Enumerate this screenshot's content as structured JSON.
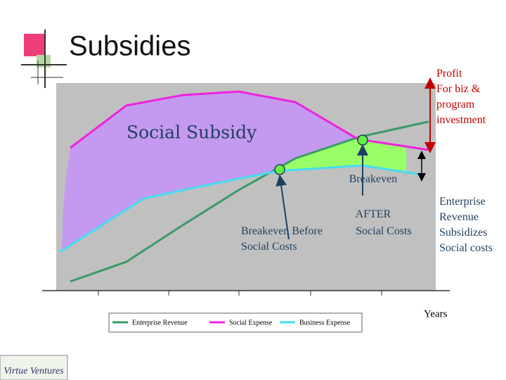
{
  "title": "Subsidies",
  "chart_data": {
    "type": "line",
    "annotations": {
      "subsidy": "Social Subsidy",
      "breakeven_after": [
        "Breakeven",
        "AFTER",
        "Social Costs"
      ],
      "breakeven_before": [
        "Breakeven Before",
        "Social Costs"
      ],
      "profit": [
        "Profit",
        "For biz &",
        "program",
        "investment"
      ],
      "enterprise": [
        "Enterprise",
        "Revenue",
        "Subsidizes",
        "Social costs"
      ]
    },
    "xlabel": "Years",
    "xlim": [
      0,
      100
    ],
    "ylim": [
      0,
      100
    ],
    "series": [
      {
        "name": "Enterprise Revenue",
        "color": "#3a9a68",
        "x": [
          3.7,
          18.5,
          33.3,
          48.1,
          63,
          79.6,
          98.1
        ],
        "values": [
          4.4,
          13.9,
          31.5,
          48.5,
          63.7,
          73.9,
          81.4
        ]
      },
      {
        "name": "Social  Expense",
        "color": "#ee22dd",
        "x": [
          3.7,
          18.5,
          33.3,
          48.1,
          63,
          79.6,
          98.1
        ],
        "values": [
          68.8,
          89.2,
          94.2,
          95.9,
          90.8,
          72.9,
          67.8
        ]
      },
      {
        "name": "Business Expense",
        "color": "#44ddf0",
        "x": [
          0.9,
          23.1,
          40.7,
          58.3,
          80.6,
          96.3
        ],
        "values": [
          18.6,
          44.4,
          51.2,
          57.6,
          60.3,
          55.9
        ]
      }
    ],
    "logo": "Virtue Ventures"
  }
}
